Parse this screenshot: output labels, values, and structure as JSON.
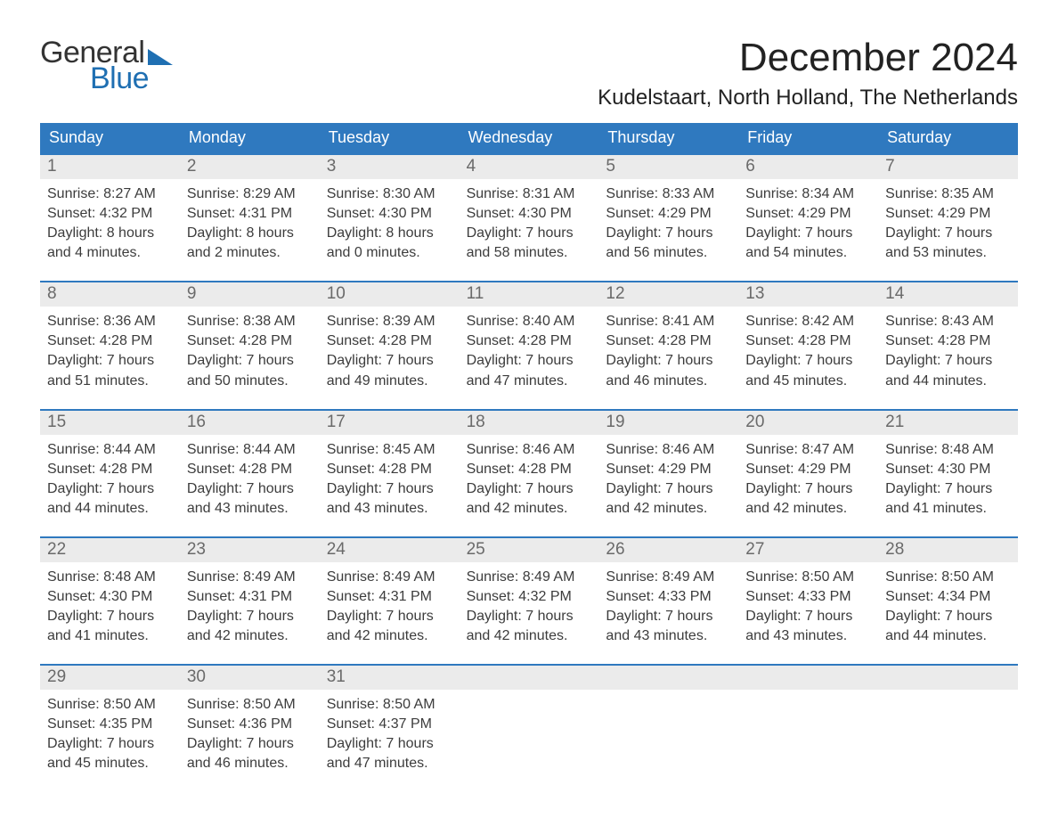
{
  "logo": {
    "word1": "General",
    "word2": "Blue"
  },
  "title": "December 2024",
  "location": "Kudelstaart, North Holland, The Netherlands",
  "colors": {
    "header_bg": "#2f79bf",
    "header_text": "#ffffff",
    "daynum_bg": "#ebebeb",
    "daynum_text": "#6a6a6a",
    "body_text": "#3c3c3c",
    "week_border": "#2f79bf",
    "logo_accent": "#1f6fb2",
    "page_bg": "#ffffff"
  },
  "typography": {
    "title_fontsize": 44,
    "location_fontsize": 24,
    "dow_fontsize": 18,
    "daynum_fontsize": 19,
    "cell_fontsize": 16,
    "logo_fontsize": 34
  },
  "days_of_week": [
    "Sunday",
    "Monday",
    "Tuesday",
    "Wednesday",
    "Thursday",
    "Friday",
    "Saturday"
  ],
  "weeks": [
    [
      {
        "n": "1",
        "sunrise": "Sunrise: 8:27 AM",
        "sunset": "Sunset: 4:32 PM",
        "d1": "Daylight: 8 hours",
        "d2": "and 4 minutes."
      },
      {
        "n": "2",
        "sunrise": "Sunrise: 8:29 AM",
        "sunset": "Sunset: 4:31 PM",
        "d1": "Daylight: 8 hours",
        "d2": "and 2 minutes."
      },
      {
        "n": "3",
        "sunrise": "Sunrise: 8:30 AM",
        "sunset": "Sunset: 4:30 PM",
        "d1": "Daylight: 8 hours",
        "d2": "and 0 minutes."
      },
      {
        "n": "4",
        "sunrise": "Sunrise: 8:31 AM",
        "sunset": "Sunset: 4:30 PM",
        "d1": "Daylight: 7 hours",
        "d2": "and 58 minutes."
      },
      {
        "n": "5",
        "sunrise": "Sunrise: 8:33 AM",
        "sunset": "Sunset: 4:29 PM",
        "d1": "Daylight: 7 hours",
        "d2": "and 56 minutes."
      },
      {
        "n": "6",
        "sunrise": "Sunrise: 8:34 AM",
        "sunset": "Sunset: 4:29 PM",
        "d1": "Daylight: 7 hours",
        "d2": "and 54 minutes."
      },
      {
        "n": "7",
        "sunrise": "Sunrise: 8:35 AM",
        "sunset": "Sunset: 4:29 PM",
        "d1": "Daylight: 7 hours",
        "d2": "and 53 minutes."
      }
    ],
    [
      {
        "n": "8",
        "sunrise": "Sunrise: 8:36 AM",
        "sunset": "Sunset: 4:28 PM",
        "d1": "Daylight: 7 hours",
        "d2": "and 51 minutes."
      },
      {
        "n": "9",
        "sunrise": "Sunrise: 8:38 AM",
        "sunset": "Sunset: 4:28 PM",
        "d1": "Daylight: 7 hours",
        "d2": "and 50 minutes."
      },
      {
        "n": "10",
        "sunrise": "Sunrise: 8:39 AM",
        "sunset": "Sunset: 4:28 PM",
        "d1": "Daylight: 7 hours",
        "d2": "and 49 minutes."
      },
      {
        "n": "11",
        "sunrise": "Sunrise: 8:40 AM",
        "sunset": "Sunset: 4:28 PM",
        "d1": "Daylight: 7 hours",
        "d2": "and 47 minutes."
      },
      {
        "n": "12",
        "sunrise": "Sunrise: 8:41 AM",
        "sunset": "Sunset: 4:28 PM",
        "d1": "Daylight: 7 hours",
        "d2": "and 46 minutes."
      },
      {
        "n": "13",
        "sunrise": "Sunrise: 8:42 AM",
        "sunset": "Sunset: 4:28 PM",
        "d1": "Daylight: 7 hours",
        "d2": "and 45 minutes."
      },
      {
        "n": "14",
        "sunrise": "Sunrise: 8:43 AM",
        "sunset": "Sunset: 4:28 PM",
        "d1": "Daylight: 7 hours",
        "d2": "and 44 minutes."
      }
    ],
    [
      {
        "n": "15",
        "sunrise": "Sunrise: 8:44 AM",
        "sunset": "Sunset: 4:28 PM",
        "d1": "Daylight: 7 hours",
        "d2": "and 44 minutes."
      },
      {
        "n": "16",
        "sunrise": "Sunrise: 8:44 AM",
        "sunset": "Sunset: 4:28 PM",
        "d1": "Daylight: 7 hours",
        "d2": "and 43 minutes."
      },
      {
        "n": "17",
        "sunrise": "Sunrise: 8:45 AM",
        "sunset": "Sunset: 4:28 PM",
        "d1": "Daylight: 7 hours",
        "d2": "and 43 minutes."
      },
      {
        "n": "18",
        "sunrise": "Sunrise: 8:46 AM",
        "sunset": "Sunset: 4:28 PM",
        "d1": "Daylight: 7 hours",
        "d2": "and 42 minutes."
      },
      {
        "n": "19",
        "sunrise": "Sunrise: 8:46 AM",
        "sunset": "Sunset: 4:29 PM",
        "d1": "Daylight: 7 hours",
        "d2": "and 42 minutes."
      },
      {
        "n": "20",
        "sunrise": "Sunrise: 8:47 AM",
        "sunset": "Sunset: 4:29 PM",
        "d1": "Daylight: 7 hours",
        "d2": "and 42 minutes."
      },
      {
        "n": "21",
        "sunrise": "Sunrise: 8:48 AM",
        "sunset": "Sunset: 4:30 PM",
        "d1": "Daylight: 7 hours",
        "d2": "and 41 minutes."
      }
    ],
    [
      {
        "n": "22",
        "sunrise": "Sunrise: 8:48 AM",
        "sunset": "Sunset: 4:30 PM",
        "d1": "Daylight: 7 hours",
        "d2": "and 41 minutes."
      },
      {
        "n": "23",
        "sunrise": "Sunrise: 8:49 AM",
        "sunset": "Sunset: 4:31 PM",
        "d1": "Daylight: 7 hours",
        "d2": "and 42 minutes."
      },
      {
        "n": "24",
        "sunrise": "Sunrise: 8:49 AM",
        "sunset": "Sunset: 4:31 PM",
        "d1": "Daylight: 7 hours",
        "d2": "and 42 minutes."
      },
      {
        "n": "25",
        "sunrise": "Sunrise: 8:49 AM",
        "sunset": "Sunset: 4:32 PM",
        "d1": "Daylight: 7 hours",
        "d2": "and 42 minutes."
      },
      {
        "n": "26",
        "sunrise": "Sunrise: 8:49 AM",
        "sunset": "Sunset: 4:33 PM",
        "d1": "Daylight: 7 hours",
        "d2": "and 43 minutes."
      },
      {
        "n": "27",
        "sunrise": "Sunrise: 8:50 AM",
        "sunset": "Sunset: 4:33 PM",
        "d1": "Daylight: 7 hours",
        "d2": "and 43 minutes."
      },
      {
        "n": "28",
        "sunrise": "Sunrise: 8:50 AM",
        "sunset": "Sunset: 4:34 PM",
        "d1": "Daylight: 7 hours",
        "d2": "and 44 minutes."
      }
    ],
    [
      {
        "n": "29",
        "sunrise": "Sunrise: 8:50 AM",
        "sunset": "Sunset: 4:35 PM",
        "d1": "Daylight: 7 hours",
        "d2": "and 45 minutes."
      },
      {
        "n": "30",
        "sunrise": "Sunrise: 8:50 AM",
        "sunset": "Sunset: 4:36 PM",
        "d1": "Daylight: 7 hours",
        "d2": "and 46 minutes."
      },
      {
        "n": "31",
        "sunrise": "Sunrise: 8:50 AM",
        "sunset": "Sunset: 4:37 PM",
        "d1": "Daylight: 7 hours",
        "d2": "and 47 minutes."
      },
      null,
      null,
      null,
      null
    ]
  ]
}
